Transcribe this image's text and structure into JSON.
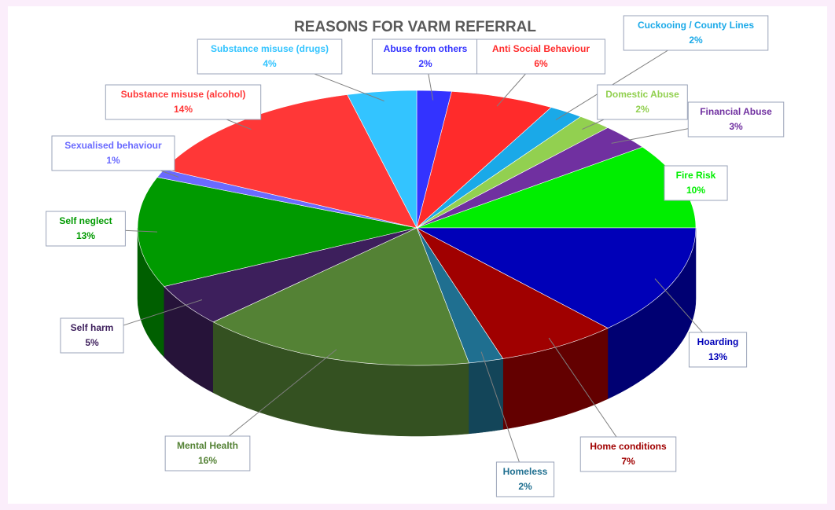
{
  "chart_data": {
    "type": "pie",
    "title": "REASONS FOR VARM REFERRAL",
    "categories": [
      "Abuse from others",
      "Anti Social Behaviour",
      "Cuckooing / County Lines",
      "Domestic Abuse",
      "Financial Abuse",
      "Fire Risk",
      "Hoarding",
      "Home conditions",
      "Homeless",
      "Mental Health",
      "Self harm",
      "Self neglect",
      "Sexualised behaviour",
      "Substance misuse (alcohol)",
      "Substance misuse (drugs)"
    ],
    "values": [
      2,
      6,
      2,
      2,
      3,
      10,
      13,
      7,
      2,
      16,
      5,
      13,
      1,
      14,
      4
    ],
    "value_labels": [
      "2%",
      "6%",
      "2%",
      "2%",
      "3%",
      "10%",
      "13%",
      "7%",
      "2%",
      "16%",
      "5%",
      "13%",
      "1%",
      "14%",
      "4%"
    ],
    "colors": [
      "#3333ff",
      "#ff2b2b",
      "#1aa9e8",
      "#92d050",
      "#7030a0",
      "#00ee00",
      "#0000b8",
      "#a00000",
      "#1f6f90",
      "#548235",
      "#3d1f5c",
      "#009a00",
      "#6a6aff",
      "#ff3737",
      "#33c4ff"
    ]
  }
}
